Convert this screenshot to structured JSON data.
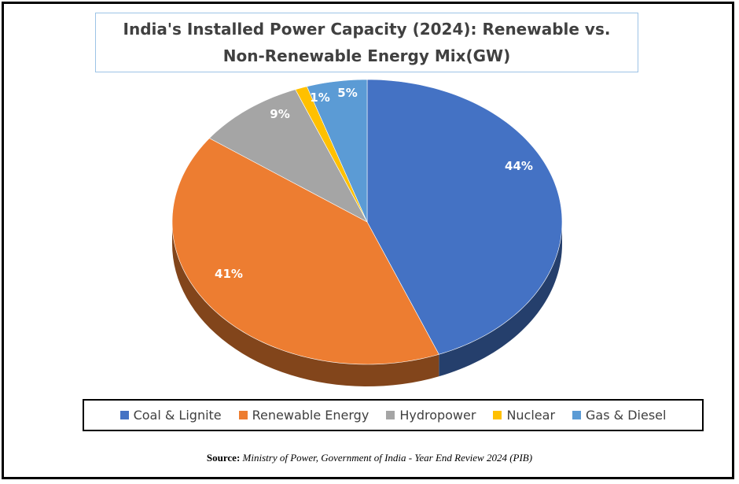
{
  "chart_data": {
    "type": "pie",
    "title": "India's Installed Power Capacity (2024): Renewable vs. Non-Renewable Energy Mix(GW)",
    "categories": [
      "Coal & Lignite",
      "Renewable Energy",
      "Hydropower",
      "Nuclear",
      "Gas & Diesel"
    ],
    "values": [
      44,
      41,
      9,
      1,
      5
    ],
    "data_labels": [
      "44%",
      "41%",
      "9%",
      "1%",
      "5%"
    ],
    "colors": [
      "#4472c4",
      "#ed7d31",
      "#a5a5a5",
      "#ffc000",
      "#5b9bd5"
    ],
    "legend_position": "bottom"
  },
  "source": {
    "label": "Source:",
    "text": "Ministry of Power, Government of India - Year End Review 2024 (PIB)"
  }
}
